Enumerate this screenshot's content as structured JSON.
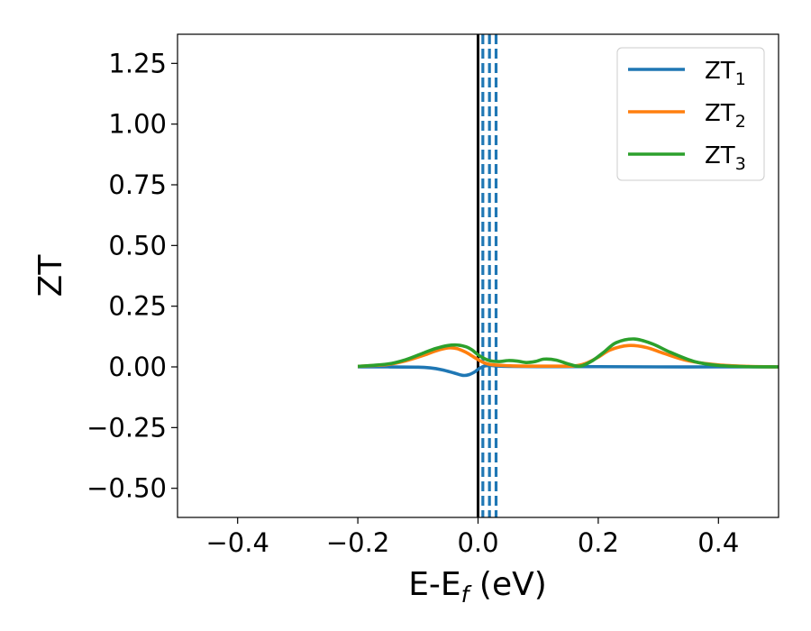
{
  "chart_data": {
    "type": "line",
    "title": "",
    "xlabel_main": "E-E",
    "xlabel_sub": "f",
    "xlabel_unit": " (eV)",
    "ylabel": "ZT",
    "xlim": [
      -0.5,
      0.5
    ],
    "ylim": [
      -0.62,
      1.37
    ],
    "xticks": [
      -0.4,
      -0.2,
      0.0,
      0.2,
      0.4
    ],
    "xtick_labels": [
      "−0.4",
      "−0.2",
      "0.0",
      "0.2",
      "0.4"
    ],
    "yticks": [
      -0.5,
      -0.25,
      0.0,
      0.25,
      0.5,
      0.75,
      1.0,
      1.25
    ],
    "ytick_labels": [
      "−0.50",
      "−0.25",
      "0.00",
      "0.25",
      "0.50",
      "0.75",
      "1.00",
      "1.25"
    ],
    "grid": false,
    "legend_position": "top-right",
    "vertical_lines": [
      {
        "x": 0.0,
        "style": "solid",
        "color": "#000000"
      },
      {
        "x": 0.008,
        "style": "dashed",
        "color": "#1f77b4"
      },
      {
        "x": 0.019,
        "style": "dashed",
        "color": "#1f77b4"
      },
      {
        "x": 0.03,
        "style": "dashed",
        "color": "#1f77b4"
      }
    ],
    "series": [
      {
        "name": "ZT",
        "subscript": "1",
        "color": "#1f77b4",
        "x": [
          -0.2,
          -0.15,
          -0.1,
          -0.08,
          -0.06,
          -0.04,
          -0.025,
          -0.015,
          -0.005,
          0.0,
          0.01,
          0.02,
          0.03,
          0.05,
          0.1,
          0.2,
          0.3,
          0.4,
          0.5
        ],
        "y": [
          0.0,
          0.0,
          -0.001,
          -0.004,
          -0.012,
          -0.025,
          -0.035,
          -0.032,
          -0.02,
          -0.01,
          0.003,
          0.006,
          0.004,
          0.002,
          0.001,
          0.001,
          0.0,
          0.0,
          0.0
        ]
      },
      {
        "name": "ZT",
        "subscript": "2",
        "color": "#ff7f0e",
        "x": [
          -0.2,
          -0.15,
          -0.12,
          -0.09,
          -0.07,
          -0.05,
          -0.035,
          -0.02,
          -0.01,
          0.0,
          0.01,
          0.02,
          0.04,
          0.06,
          0.08,
          0.1,
          0.13,
          0.16,
          0.18,
          0.2,
          0.22,
          0.25,
          0.28,
          0.31,
          0.35,
          0.4,
          0.45,
          0.5
        ],
        "y": [
          0.002,
          0.01,
          0.025,
          0.048,
          0.066,
          0.078,
          0.075,
          0.06,
          0.045,
          0.03,
          0.017,
          0.01,
          0.006,
          0.004,
          0.003,
          0.003,
          0.003,
          0.004,
          0.015,
          0.04,
          0.07,
          0.088,
          0.08,
          0.055,
          0.025,
          0.008,
          0.002,
          0.0
        ]
      },
      {
        "name": "ZT",
        "subscript": "3",
        "color": "#2ca02c",
        "x": [
          -0.2,
          -0.15,
          -0.12,
          -0.09,
          -0.07,
          -0.05,
          -0.035,
          -0.02,
          -0.01,
          0.0,
          0.01,
          0.02,
          0.035,
          0.05,
          0.065,
          0.08,
          0.095,
          0.11,
          0.13,
          0.15,
          0.17,
          0.19,
          0.21,
          0.23,
          0.26,
          0.29,
          0.32,
          0.36,
          0.4,
          0.45,
          0.5
        ],
        "y": [
          0.002,
          0.012,
          0.03,
          0.058,
          0.076,
          0.088,
          0.09,
          0.083,
          0.07,
          0.05,
          0.035,
          0.025,
          0.022,
          0.026,
          0.024,
          0.018,
          0.022,
          0.032,
          0.028,
          0.012,
          0.003,
          0.025,
          0.062,
          0.1,
          0.115,
          0.095,
          0.06,
          0.022,
          0.006,
          0.001,
          0.0
        ]
      }
    ]
  }
}
